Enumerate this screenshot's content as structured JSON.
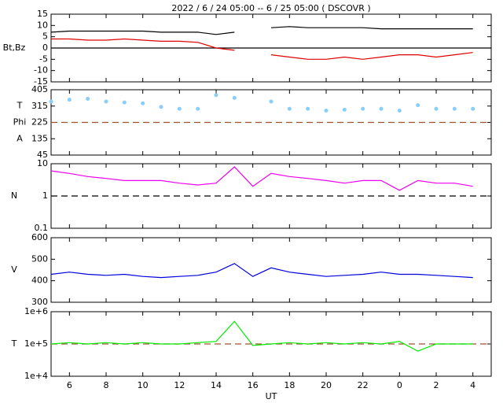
{
  "title": "2022 /  6 / 24   05:00 --  6 / 25   05:00 ( DSCOVR )",
  "xlabel": "UT",
  "chart_data": [
    {
      "type": "line",
      "ylabels": [
        "Bt,Bz"
      ],
      "x": [
        5,
        6,
        7,
        8,
        9,
        10,
        11,
        12,
        13,
        14,
        15,
        16,
        17,
        18,
        19,
        20,
        21,
        22,
        23,
        24,
        25,
        26,
        27,
        28
      ],
      "xlim": [
        5,
        29
      ],
      "xticks": [
        6,
        8,
        10,
        12,
        14,
        16,
        18,
        20,
        22,
        {
          "value": 24,
          "label": "0"
        },
        {
          "value": 26,
          "label": "2"
        },
        {
          "value": 28,
          "label": "4"
        }
      ],
      "ylim": [
        -15,
        15
      ],
      "yticks": [
        15,
        10,
        5,
        0,
        -5,
        -10,
        -15
      ],
      "log": false,
      "hline": {
        "value": 0,
        "color": "#000000",
        "dashed": false
      },
      "series": [
        {
          "name": "Bt",
          "color": "#000000",
          "values": [
            7,
            7.5,
            7.5,
            7.5,
            7.5,
            7.5,
            7,
            7,
            7,
            6,
            7,
            null,
            9,
            9.5,
            9,
            9,
            9,
            9,
            8.5,
            8.5,
            8.5,
            8.5,
            8.5,
            8.5
          ]
        },
        {
          "name": "Bz",
          "color": "#e00000",
          "values": [
            4,
            4,
            3.5,
            3.5,
            4,
            3.5,
            3,
            3,
            2.5,
            0,
            -1,
            null,
            -3,
            -4,
            -5,
            -5,
            -4,
            -5,
            -4,
            -3,
            -3,
            -4,
            -3,
            -2
          ]
        }
      ]
    },
    {
      "type": "scatter",
      "ylabels": [
        "T",
        "Phi",
        "A"
      ],
      "x": [
        5,
        6,
        7,
        8,
        9,
        10,
        11,
        12,
        13,
        14,
        15,
        16,
        17,
        18,
        19,
        20,
        21,
        22,
        23,
        24,
        25,
        26,
        27,
        28
      ],
      "xlim": [
        5,
        29
      ],
      "xticks": [
        6,
        8,
        10,
        12,
        14,
        16,
        18,
        20,
        22,
        {
          "value": 24,
          "label": "0"
        },
        {
          "value": 26,
          "label": "2"
        },
        {
          "value": 28,
          "label": "4"
        }
      ],
      "ylim": [
        45,
        405
      ],
      "yticks": [
        405,
        315,
        225,
        135,
        45
      ],
      "log": false,
      "hline": {
        "value": 225,
        "color": "#a0522d",
        "dashed": true
      },
      "series": [
        {
          "name": "Phi",
          "color": "#87cefa",
          "values": [
            340,
            350,
            355,
            340,
            335,
            330,
            310,
            300,
            300,
            375,
            360,
            null,
            340,
            300,
            300,
            290,
            295,
            300,
            300,
            290,
            320,
            300,
            300,
            300
          ]
        }
      ]
    },
    {
      "type": "line",
      "ylabels": [
        "N"
      ],
      "x": [
        5,
        6,
        7,
        8,
        9,
        10,
        11,
        12,
        13,
        14,
        15,
        16,
        17,
        18,
        19,
        20,
        21,
        22,
        23,
        24,
        25,
        26,
        27,
        28
      ],
      "xlim": [
        5,
        29
      ],
      "xticks": [
        6,
        8,
        10,
        12,
        14,
        16,
        18,
        20,
        22,
        {
          "value": 24,
          "label": "0"
        },
        {
          "value": 26,
          "label": "2"
        },
        {
          "value": 28,
          "label": "4"
        }
      ],
      "ylim": [
        0.1,
        10
      ],
      "yticks": [
        10,
        1,
        0.1
      ],
      "log": true,
      "hline": {
        "value": 1,
        "color": "#000000",
        "dashed": true
      },
      "series": [
        {
          "name": "N",
          "color": "#ee00ee",
          "values": [
            6,
            5,
            4,
            3.5,
            3,
            3,
            3,
            2.5,
            2.2,
            2.5,
            8,
            2,
            5,
            4,
            3.5,
            3,
            2.5,
            3,
            3,
            1.5,
            3,
            2.5,
            2.5,
            2
          ]
        }
      ]
    },
    {
      "type": "line",
      "ylabels": [
        "V"
      ],
      "x": [
        5,
        6,
        7,
        8,
        9,
        10,
        11,
        12,
        13,
        14,
        15,
        16,
        17,
        18,
        19,
        20,
        21,
        22,
        23,
        24,
        25,
        26,
        27,
        28
      ],
      "xlim": [
        5,
        29
      ],
      "xticks": [
        6,
        8,
        10,
        12,
        14,
        16,
        18,
        20,
        22,
        {
          "value": 24,
          "label": "0"
        },
        {
          "value": 26,
          "label": "2"
        },
        {
          "value": 28,
          "label": "4"
        }
      ],
      "ylim": [
        300,
        600
      ],
      "yticks": [
        600,
        500,
        400,
        300
      ],
      "log": false,
      "series": [
        {
          "name": "V",
          "color": "#0000dd",
          "values": [
            430,
            440,
            430,
            425,
            430,
            420,
            415,
            420,
            425,
            440,
            480,
            420,
            460,
            440,
            430,
            420,
            425,
            430,
            440,
            430,
            430,
            425,
            420,
            415
          ]
        }
      ]
    },
    {
      "type": "line",
      "ylabels": [
        "T"
      ],
      "x": [
        5,
        6,
        7,
        8,
        9,
        10,
        11,
        12,
        13,
        14,
        15,
        16,
        17,
        18,
        19,
        20,
        21,
        22,
        23,
        24,
        25,
        26,
        27,
        28
      ],
      "xlim": [
        5,
        29
      ],
      "xticks": [
        6,
        8,
        10,
        12,
        14,
        16,
        18,
        20,
        22,
        {
          "value": 24,
          "label": "0"
        },
        {
          "value": 26,
          "label": "2"
        },
        {
          "value": 28,
          "label": "4"
        }
      ],
      "ylim": [
        10000,
        1000000
      ],
      "yticks": [
        {
          "value": 1000000,
          "label": "1e+6"
        },
        {
          "value": 100000,
          "label": "1e+5"
        },
        {
          "value": 10000,
          "label": "1e+4"
        }
      ],
      "log": true,
      "hline": {
        "value": 100000,
        "color": "#a0522d",
        "dashed": true
      },
      "series": [
        {
          "name": "T",
          "color": "#00ee00",
          "values": [
            100000,
            110000,
            100000,
            110000,
            100000,
            110000,
            100000,
            100000,
            110000,
            120000,
            500000,
            90000,
            100000,
            110000,
            100000,
            110000,
            100000,
            110000,
            100000,
            120000,
            60000,
            100000,
            100000,
            100000
          ]
        }
      ]
    }
  ]
}
